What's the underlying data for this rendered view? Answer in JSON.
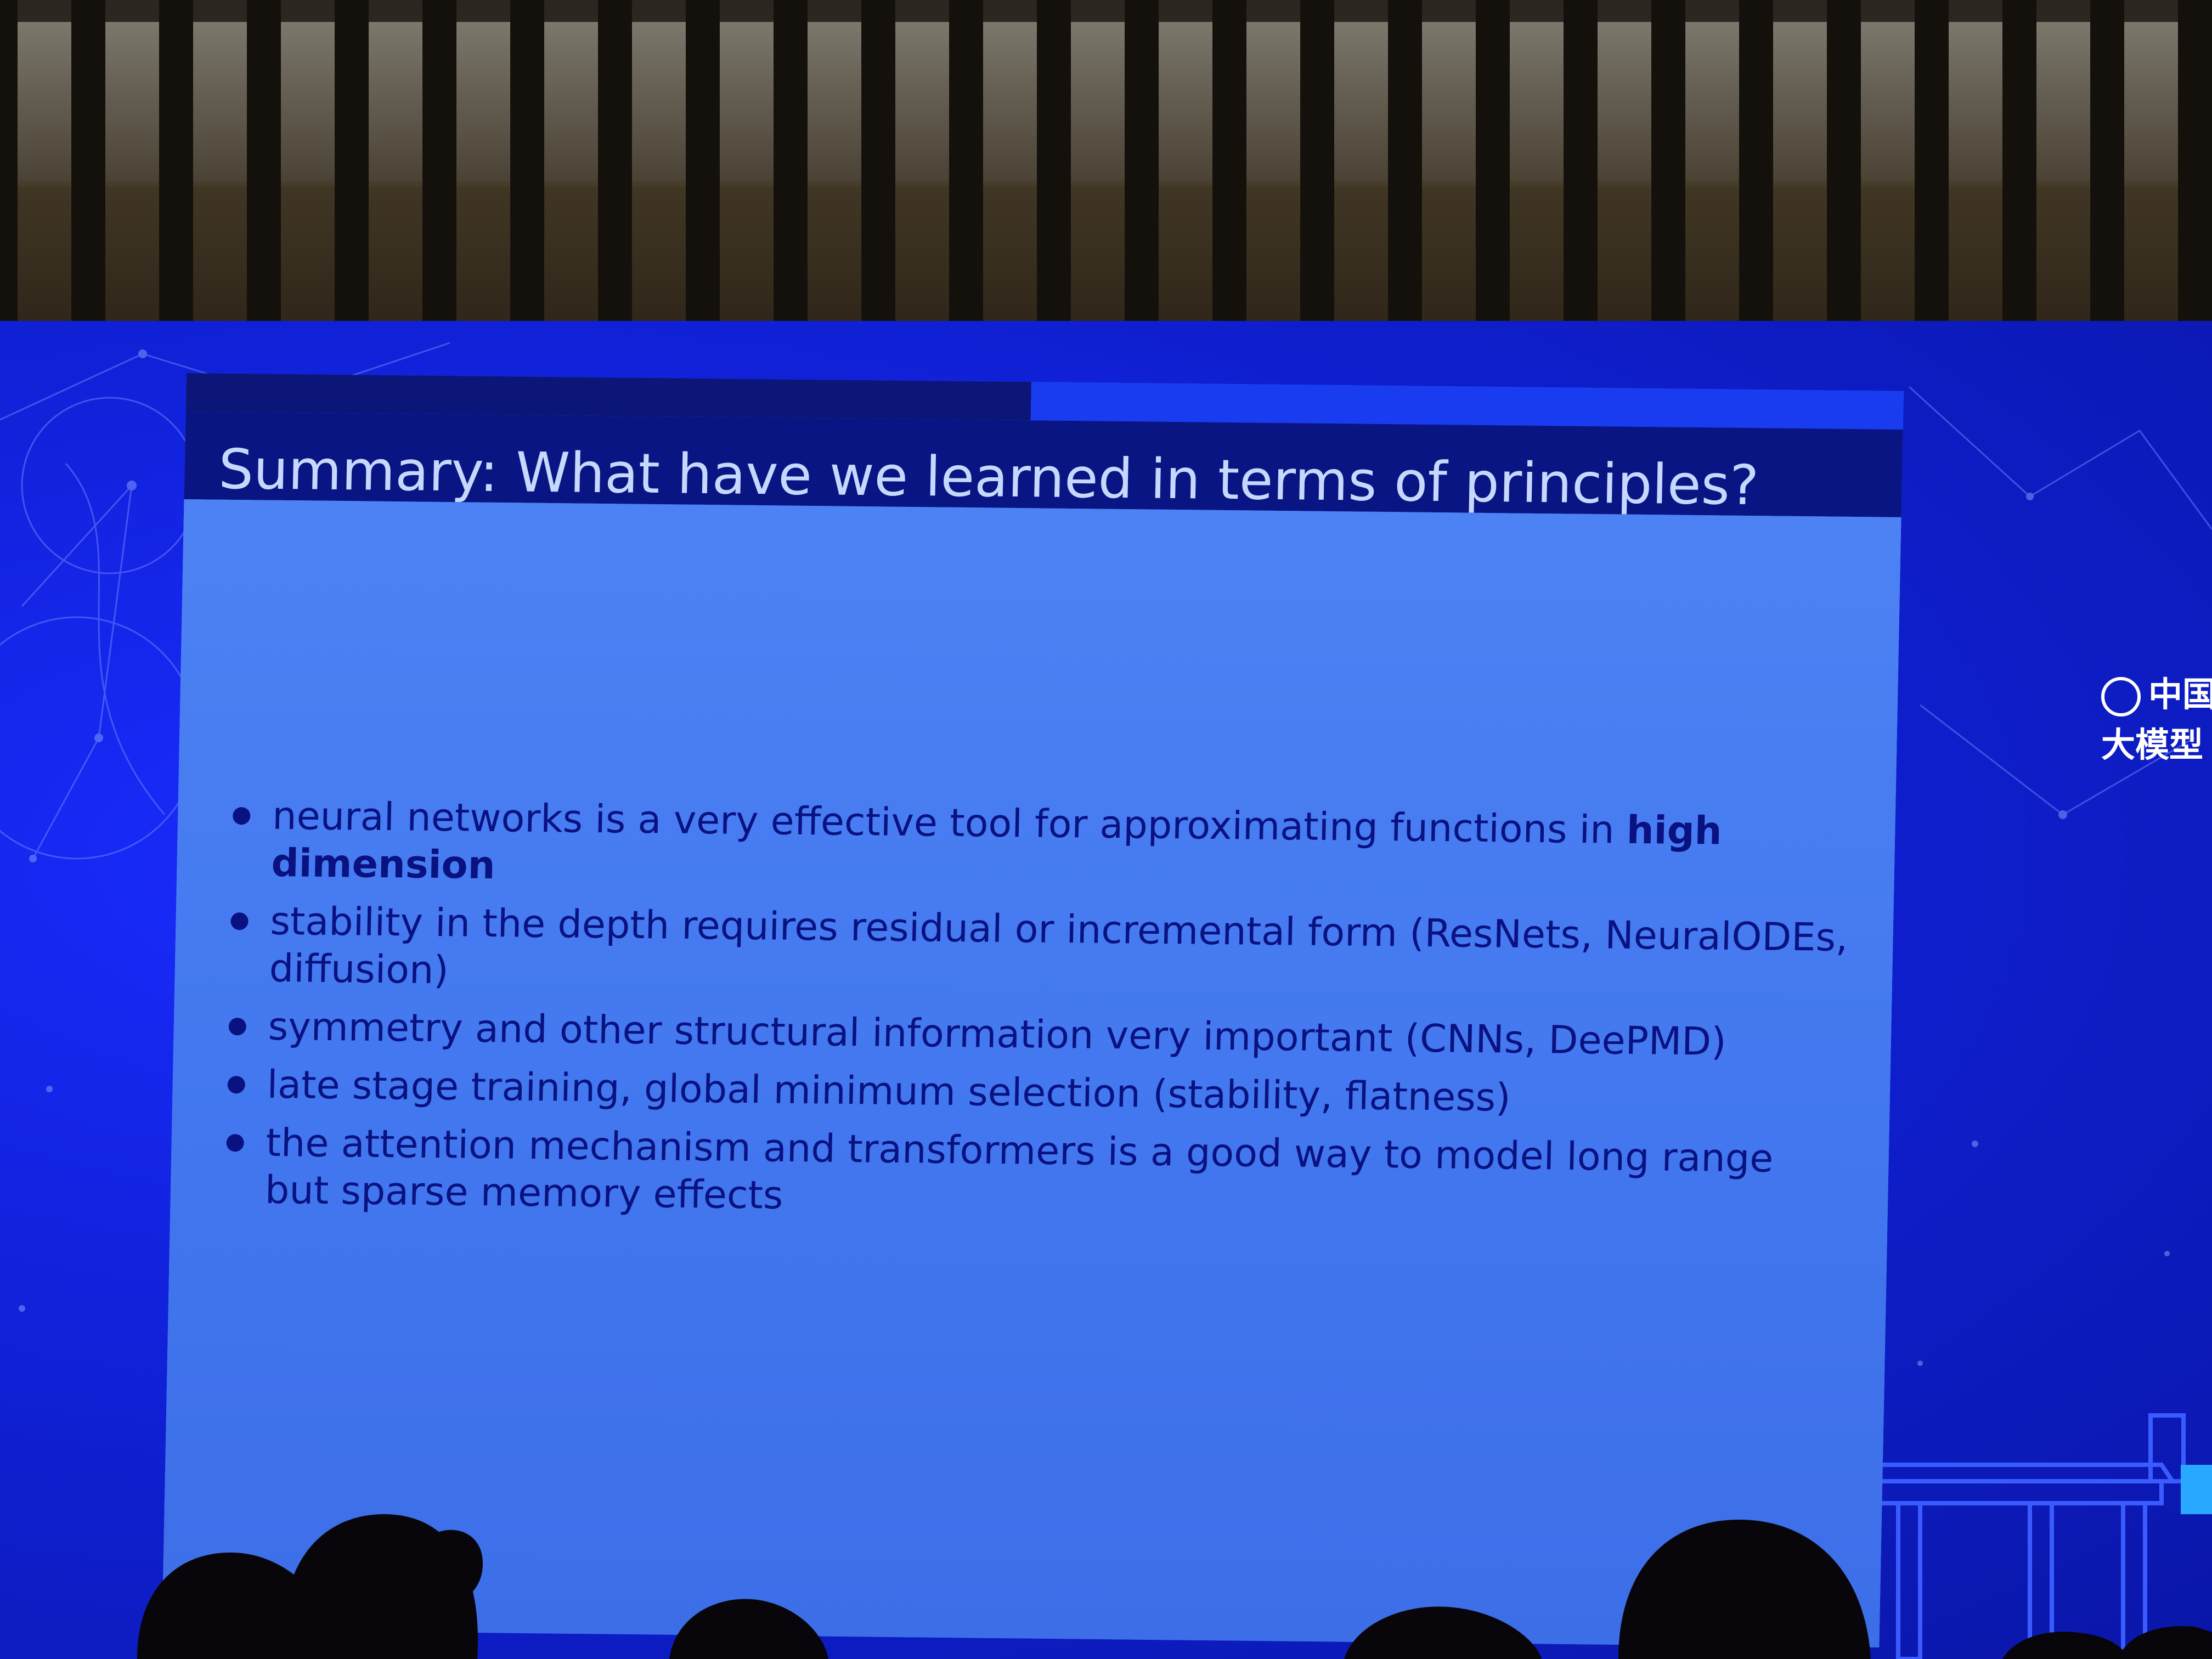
{
  "slide": {
    "title": "Summary: What have we learned in terms of principles?",
    "bullets": [
      {
        "text_before": "neural networks is a very effective tool for approximating functions in ",
        "highlight": "high dimension",
        "text_after": ""
      },
      {
        "text_before": "stability in the depth requires residual or incremental form (ResNets, NeuralODEs, diffusion)",
        "highlight": "",
        "text_after": ""
      },
      {
        "text_before": "symmetry and other structural information very important (CNNs, DeePMD)",
        "highlight": "",
        "text_after": ""
      },
      {
        "text_before": "late stage training, global minimum selection (stability, flatness)",
        "highlight": "",
        "text_after": ""
      },
      {
        "text_before": "the attention mechanism and transformers is a good way to model long range but sparse memory effects",
        "highlight": "",
        "text_after": ""
      }
    ]
  },
  "side_logo": {
    "line1": "中国",
    "line2": "大模型"
  },
  "colors": {
    "led_wall": "#1021d8",
    "title_bar": "#0a1584",
    "title_text": "#c7d8ff",
    "slide_body": "#4d82f4",
    "bullet_text": "#0a1180"
  }
}
